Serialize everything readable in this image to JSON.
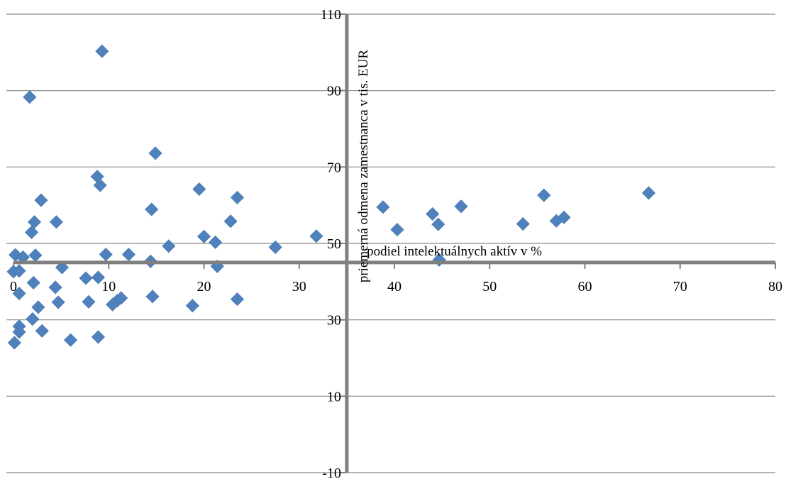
{
  "chart_data": {
    "type": "scatter",
    "title": "",
    "xlabel": "podiel intelektuálnych aktív v %",
    "ylabel": "priemerná odmena zamestnanca  v tis. EUR",
    "xlim": [
      0,
      80
    ],
    "ylim": [
      -10,
      110
    ],
    "x_ticks": [
      0,
      10,
      20,
      30,
      40,
      50,
      60,
      70,
      80
    ],
    "y_ticks": [
      -10,
      10,
      30,
      50,
      70,
      90,
      110
    ],
    "x_tick_labels": [
      "0",
      "10",
      "20",
      "30",
      "40",
      "50",
      "60",
      "70",
      "80"
    ],
    "y_tick_labels": [
      "-10",
      "10",
      "30",
      "50",
      "70",
      "90",
      "110"
    ],
    "x_axis_crosses_y_at": 45,
    "y_axis_crosses_x_at": 35,
    "grid": "horizontal",
    "marker": "diamond",
    "series_color": "#4f81bd",
    "gridline_color": "#868686",
    "axis_color": "#808080",
    "series": [
      {
        "points": [
          [
            9.3,
            100.3
          ],
          [
            1.7,
            88.3
          ],
          [
            14.9,
            73.6
          ],
          [
            8.8,
            67.5
          ],
          [
            9.1,
            65.2
          ],
          [
            19.5,
            64.2
          ],
          [
            23.5,
            62.0
          ],
          [
            2.9,
            61.3
          ],
          [
            14.5,
            58.9
          ],
          [
            2.2,
            55.6
          ],
          [
            4.5,
            55.6
          ],
          [
            22.8,
            55.8
          ],
          [
            1.9,
            52.9
          ],
          [
            20.0,
            51.8
          ],
          [
            31.8,
            51.9
          ],
          [
            21.2,
            50.3
          ],
          [
            16.3,
            49.3
          ],
          [
            27.5,
            49.0
          ],
          [
            0.2,
            47.0
          ],
          [
            1.0,
            46.4
          ],
          [
            2.3,
            46.9
          ],
          [
            9.7,
            47.1
          ],
          [
            12.1,
            47.1
          ],
          [
            14.4,
            45.3
          ],
          [
            21.4,
            44.0
          ],
          [
            5.1,
            43.7
          ],
          [
            0.0,
            42.6
          ],
          [
            0.6,
            42.8
          ],
          [
            7.6,
            40.9
          ],
          [
            8.9,
            41.1
          ],
          [
            2.1,
            39.7
          ],
          [
            4.4,
            38.5
          ],
          [
            0.6,
            36.9
          ],
          [
            14.6,
            36.1
          ],
          [
            11.3,
            35.7
          ],
          [
            10.9,
            35.0
          ],
          [
            10.4,
            34.0
          ],
          [
            23.5,
            35.4
          ],
          [
            4.7,
            34.6
          ],
          [
            7.9,
            34.7
          ],
          [
            2.6,
            33.3
          ],
          [
            18.8,
            33.7
          ],
          [
            2.0,
            30.2
          ],
          [
            0.6,
            28.3
          ],
          [
            0.6,
            26.8
          ],
          [
            3.0,
            27.1
          ],
          [
            8.9,
            25.5
          ],
          [
            6.0,
            24.7
          ],
          [
            0.1,
            24.0
          ],
          [
            38.8,
            59.5
          ],
          [
            40.3,
            53.6
          ],
          [
            44.0,
            57.7
          ],
          [
            44.6,
            55.0
          ],
          [
            44.7,
            45.7
          ],
          [
            47.0,
            59.7
          ],
          [
            53.5,
            55.1
          ],
          [
            55.7,
            62.6
          ],
          [
            57.0,
            55.9
          ],
          [
            57.8,
            56.8
          ],
          [
            66.7,
            63.2
          ]
        ]
      }
    ]
  }
}
